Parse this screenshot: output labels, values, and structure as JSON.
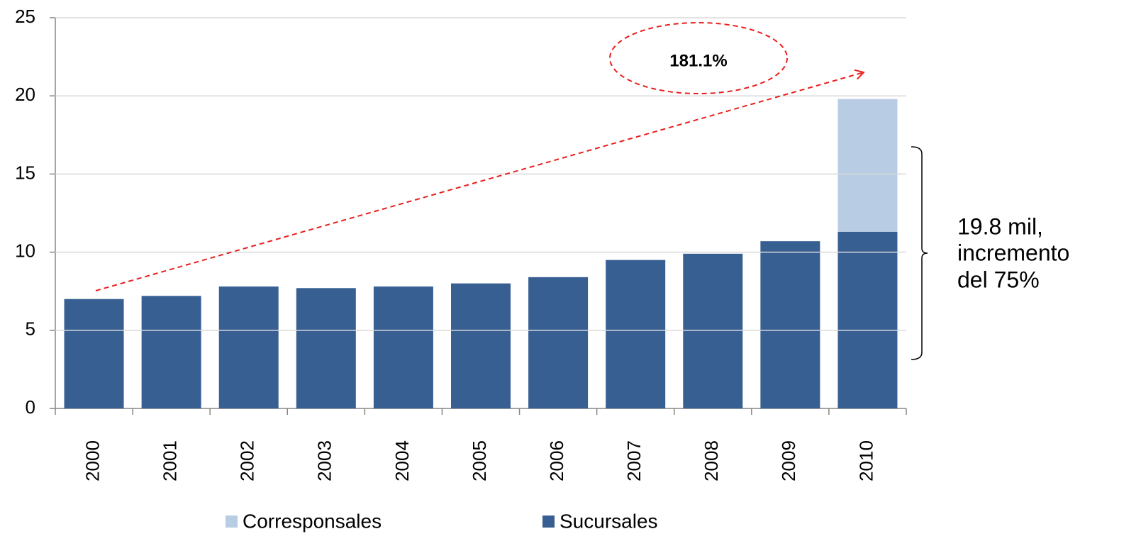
{
  "chart_data": {
    "type": "stacked_bar",
    "categories": [
      "2000",
      "2001",
      "2002",
      "2003",
      "2004",
      "2005",
      "2006",
      "2007",
      "2008",
      "2009",
      "2010"
    ],
    "series": [
      {
        "name": "Sucursales",
        "color": "#375f92",
        "label_color": "#ffffff",
        "values": [
          7.0,
          7.2,
          7.8,
          7.7,
          7.8,
          8.0,
          8.4,
          9.5,
          9.9,
          10.7,
          11.3
        ],
        "value_labels": [
          "7.0",
          "7.2",
          "7.8",
          "7.7",
          "7.8",
          "8.0",
          "8.4",
          "9.5",
          "9.9",
          "10.7",
          "11.3"
        ]
      },
      {
        "name": "Corresponsales",
        "color": "#b8cce4",
        "label_color": "#000000",
        "values": [
          null,
          null,
          null,
          null,
          null,
          null,
          null,
          null,
          null,
          null,
          8.5
        ],
        "value_labels": [
          null,
          null,
          null,
          null,
          null,
          null,
          null,
          null,
          null,
          null,
          "8.5"
        ]
      }
    ],
    "ylim": [
      0,
      25
    ],
    "yticks": [
      0,
      5,
      10,
      15,
      20,
      25
    ],
    "grid": true,
    "growth_annotation": "181.1%",
    "bracket_annotation": [
      "19.8 mil,",
      "incremento",
      "del 75%"
    ]
  }
}
